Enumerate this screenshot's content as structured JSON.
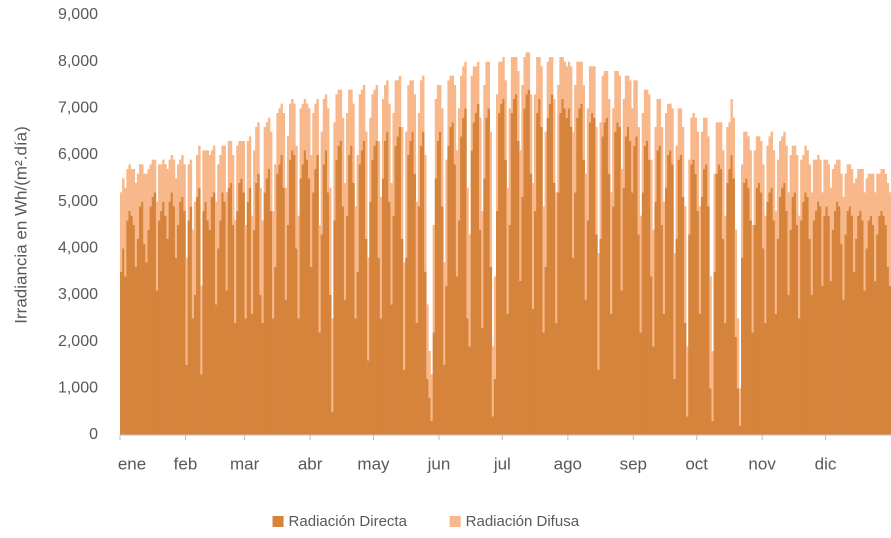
{
  "chart_data": {
    "type": "bar",
    "stacked": true,
    "ylabel": "Irradiancia en Wh/(m².día)",
    "legend": "bottom",
    "grid": false,
    "categories": [
      "ene",
      null,
      null,
      null,
      null,
      null,
      null,
      null,
      null,
      null,
      null,
      null,
      null,
      null,
      null,
      null,
      null,
      null,
      null,
      null,
      null,
      null,
      null,
      null,
      null,
      null,
      null,
      null,
      null,
      null,
      null,
      "feb",
      null,
      null,
      null,
      null,
      null,
      null,
      null,
      null,
      null,
      null,
      null,
      null,
      null,
      null,
      null,
      null,
      null,
      null,
      null,
      null,
      null,
      null,
      null,
      null,
      null,
      null,
      null,
      "mar",
      null,
      null,
      null,
      null,
      null,
      null,
      null,
      null,
      null,
      null,
      null,
      null,
      null,
      null,
      null,
      null,
      null,
      null,
      null,
      null,
      null,
      null,
      null,
      null,
      null,
      null,
      null,
      null,
      null,
      null,
      "abr",
      null,
      null,
      null,
      null,
      null,
      null,
      null,
      null,
      null,
      null,
      null,
      null,
      null,
      null,
      null,
      null,
      null,
      null,
      null,
      null,
      null,
      null,
      null,
      null,
      null,
      null,
      null,
      null,
      null,
      "may",
      null,
      null,
      null,
      null,
      null,
      null,
      null,
      null,
      null,
      null,
      null,
      null,
      null,
      null,
      null,
      null,
      null,
      null,
      null,
      null,
      null,
      null,
      null,
      null,
      null,
      null,
      null,
      null,
      null,
      null,
      "jun",
      null,
      null,
      null,
      null,
      null,
      null,
      null,
      null,
      null,
      null,
      null,
      null,
      null,
      null,
      null,
      null,
      null,
      null,
      null,
      null,
      null,
      null,
      null,
      null,
      null,
      null,
      null,
      null,
      null,
      "jul",
      null,
      null,
      null,
      null,
      null,
      null,
      null,
      null,
      null,
      null,
      null,
      null,
      null,
      null,
      null,
      null,
      null,
      null,
      null,
      null,
      null,
      null,
      null,
      null,
      null,
      null,
      null,
      null,
      null,
      null,
      "ago",
      null,
      null,
      null,
      null,
      null,
      null,
      null,
      null,
      null,
      null,
      null,
      null,
      null,
      null,
      null,
      null,
      null,
      null,
      null,
      null,
      null,
      null,
      null,
      null,
      null,
      null,
      null,
      null,
      null,
      null,
      "sep",
      null,
      null,
      null,
      null,
      null,
      null,
      null,
      null,
      null,
      null,
      null,
      null,
      null,
      null,
      null,
      null,
      null,
      null,
      null,
      null,
      null,
      null,
      null,
      null,
      null,
      null,
      null,
      null,
      null,
      "oct",
      null,
      null,
      null,
      null,
      null,
      null,
      null,
      null,
      null,
      null,
      null,
      null,
      null,
      null,
      null,
      null,
      null,
      null,
      null,
      null,
      null,
      null,
      null,
      null,
      null,
      null,
      null,
      null,
      null,
      null,
      "nov",
      null,
      null,
      null,
      null,
      null,
      null,
      null,
      null,
      null,
      null,
      null,
      null,
      null,
      null,
      null,
      null,
      null,
      null,
      null,
      null,
      null,
      null,
      null,
      null,
      null,
      null,
      null,
      null,
      null,
      "dic",
      null,
      null,
      null,
      null,
      null,
      null,
      null,
      null,
      null,
      null,
      null,
      null,
      null,
      null,
      null,
      null,
      null,
      null,
      null,
      null,
      null,
      null,
      null,
      null,
      null,
      null,
      null,
      null,
      null,
      null
    ],
    "series": [
      {
        "name": "Radiación Directa",
        "color": "#d6843c",
        "values": [
          3500,
          4000,
          3400,
          4600,
          4800,
          4700,
          4500,
          3600,
          4200,
          4900,
          5000,
          4100,
          3700,
          4400,
          4900,
          5100,
          5200,
          3100,
          4600,
          4800,
          5000,
          4700,
          4200,
          5000,
          5200,
          4900,
          3800,
          4500,
          5000,
          5100,
          4800,
          1500,
          4600,
          4900,
          2500,
          3000,
          5100,
          5300,
          1300,
          4800,
          5000,
          4600,
          4400,
          5100,
          5200,
          2800,
          4000,
          4600,
          5200,
          5000,
          3100,
          5300,
          5400,
          4500,
          2400,
          4800,
          5400,
          5500,
          5200,
          2500,
          5000,
          5300,
          2600,
          4400,
          5400,
          5600,
          3000,
          2400,
          5200,
          5500,
          5700,
          4800,
          2500,
          3600,
          5600,
          5800,
          6000,
          5300,
          2900,
          4500,
          5900,
          6100,
          6000,
          4000,
          2500,
          5500,
          5800,
          6100,
          5900,
          5500,
          3600,
          5200,
          5700,
          6000,
          2200,
          4300,
          5800,
          6100,
          5200,
          3000,
          500,
          4600,
          5900,
          6200,
          6300,
          4900,
          2900,
          4700,
          6000,
          6200,
          5400,
          2500,
          3500,
          5800,
          6100,
          6300,
          4200,
          1600,
          5000,
          5900,
          6200,
          6300,
          3800,
          2500,
          5500,
          6300,
          6500,
          5000,
          2800,
          4700,
          6200,
          6400,
          6600,
          4200,
          1400,
          3800,
          6000,
          6300,
          6500,
          5600,
          2400,
          4900,
          6200,
          6500,
          3500,
          1200,
          800,
          300,
          2200,
          5500,
          6300,
          6500,
          4900,
          1500,
          3200,
          6200,
          6600,
          6700,
          5800,
          3400,
          4600,
          6400,
          6800,
          7000,
          2500,
          1900,
          6100,
          6700,
          6900,
          7100,
          4400,
          2300,
          5500,
          6800,
          7000,
          3600,
          400,
          1200,
          4800,
          6900,
          7100,
          7200,
          5900,
          2600,
          4500,
          6900,
          7200,
          7300,
          6300,
          3300,
          5100,
          7000,
          7300,
          7400,
          5600,
          2700,
          4800,
          6900,
          7200,
          6600,
          2200,
          3600,
          6800,
          7100,
          7300,
          5400,
          2400,
          5200,
          6900,
          7200,
          7000,
          6800,
          7000,
          6600,
          3800,
          5200,
          6800,
          7000,
          7100,
          5900,
          2900,
          4600,
          6700,
          6900,
          6800,
          4300,
          1400,
          4200,
          6400,
          6700,
          6800,
          5600,
          2600,
          4900,
          6500,
          6700,
          6600,
          3100,
          5300,
          6400,
          6600,
          6300,
          5200,
          6200,
          6400,
          4300,
          2200,
          5200,
          6200,
          6300,
          5900,
          3400,
          1900,
          5000,
          6100,
          6200,
          4500,
          2600,
          5300,
          6000,
          6100,
          5800,
          1200,
          4200,
          5900,
          6000,
          5100,
          2400,
          400,
          4300,
          5800,
          5900,
          5600,
          4800,
          2600,
          5100,
          5700,
          5800,
          4900,
          1000,
          300,
          3500,
          5600,
          5800,
          5700,
          4200,
          2400,
          5400,
          5700,
          6000,
          5500,
          2100,
          1000,
          200,
          3800,
          5400,
          5500,
          5300,
          4600,
          2200,
          4500,
          5300,
          5400,
          5200,
          4000,
          2400,
          5000,
          5200,
          5300,
          4600,
          2600,
          4200,
          5100,
          5300,
          5400,
          4800,
          3000,
          4400,
          5100,
          5200,
          4500,
          2500,
          4600,
          5000,
          5200,
          5100,
          4200,
          3000,
          4600,
          4800,
          5000,
          4900,
          3200,
          4700,
          4900,
          4700,
          3300,
          4400,
          4800,
          5000,
          4900,
          4100,
          2900,
          4300,
          4800,
          4900,
          4700,
          3500,
          4200,
          4700,
          4800,
          4600,
          3100,
          4000,
          4600,
          4700,
          4500,
          3300,
          4300,
          4700,
          4800,
          4700,
          4500,
          3600,
          3200
        ]
      },
      {
        "name": "Radiación Difusa",
        "color": "#f8b88b",
        "values": [
          1700,
          1500,
          1900,
          1100,
          1000,
          1000,
          1200,
          1800,
          1400,
          900,
          800,
          1500,
          1900,
          1300,
          900,
          800,
          700,
          1900,
          1200,
          1000,
          900,
          1100,
          1500,
          900,
          800,
          1000,
          1700,
          1300,
          900,
          900,
          1000,
          2300,
          1200,
          1000,
          1900,
          2000,
          900,
          900,
          1900,
          1300,
          1100,
          1500,
          1600,
          1000,
          1000,
          2200,
          1800,
          1400,
          1000,
          1200,
          2100,
          1000,
          900,
          1500,
          2200,
          1400,
          900,
          800,
          1100,
          2000,
          1300,
          1100,
          2100,
          1700,
          1200,
          1100,
          2300,
          2200,
          1400,
          1200,
          1100,
          1700,
          2300,
          2200,
          1300,
          1200,
          1100,
          1600,
          2400,
          1900,
          1200,
          1100,
          1100,
          2200,
          2200,
          1500,
          1300,
          1100,
          1200,
          1500,
          2400,
          1700,
          1400,
          1200,
          2300,
          2200,
          1400,
          1200,
          1800,
          2300,
          2000,
          2100,
          1400,
          1200,
          1100,
          1900,
          2500,
          2200,
          1400,
          1200,
          1700,
          2400,
          2500,
          1500,
          1300,
          1200,
          2300,
          2200,
          1800,
          1400,
          1200,
          1200,
          2500,
          2600,
          1700,
          1200,
          1100,
          2100,
          2600,
          2200,
          1400,
          1200,
          1100,
          2400,
          2300,
          2700,
          1500,
          1300,
          1100,
          1700,
          2600,
          2000,
          1400,
          1200,
          2500,
          1600,
          1000,
          1000,
          2300,
          1700,
          1200,
          1000,
          2100,
          2200,
          2700,
          1400,
          1100,
          1000,
          1700,
          2700,
          2400,
          1300,
          1100,
          1000,
          2800,
          2400,
          1600,
          1200,
          1000,
          900,
          2400,
          2500,
          2000,
          1200,
          1000,
          2900,
          1500,
          2200,
          2500,
          1100,
          900,
          900,
          1700,
          2700,
          2500,
          1200,
          900,
          800,
          1500,
          2800,
          2400,
          1100,
          900,
          800,
          1700,
          2700,
          2500,
          1200,
          900,
          1300,
          2700,
          2900,
          1200,
          1000,
          800,
          1800,
          2800,
          2300,
          1200,
          900,
          1000,
          1100,
          1000,
          1300,
          2700,
          2300,
          1200,
          1000,
          900,
          1600,
          2700,
          2400,
          1200,
          1000,
          1100,
          2300,
          2500,
          2500,
          1300,
          1100,
          1000,
          1600,
          2600,
          2100,
          1300,
          1100,
          1100,
          2600,
          1900,
          1300,
          1100,
          1300,
          1800,
          1400,
          1200,
          2300,
          2500,
          1700,
          1200,
          1100,
          1400,
          2500,
          2500,
          1600,
          1100,
          1000,
          2100,
          2400,
          1600,
          1100,
          1000,
          1200,
          2700,
          2000,
          1100,
          1000,
          1500,
          2500,
          1500,
          1600,
          1000,
          1000,
          1200,
          1700,
          2300,
          1400,
          1100,
          1000,
          1500,
          2400,
          1500,
          2100,
          1100,
          900,
          1000,
          1900,
          2300,
          1200,
          1000,
          1200,
          1300,
          2300,
          1500,
          800,
          2000,
          1100,
          1000,
          1100,
          1500,
          2300,
          1600,
          1100,
          1000,
          1100,
          1800,
          2300,
          1200,
          1200,
          1200,
          1500,
          2200,
          1700,
          1200,
          1100,
          1100,
          1400,
          2200,
          1600,
          1100,
          1000,
          1500,
          2200,
          1300,
          1000,
          1000,
          1000,
          1600,
          2200,
          1300,
          1100,
          1000,
          1000,
          2000,
          1200,
          1000,
          1100,
          2000,
          1300,
          1000,
          900,
          1000,
          1500,
          2200,
          1300,
          1000,
          900,
          1000,
          1900,
          1300,
          1000,
          900,
          1100,
          2100,
          1500,
          1000,
          900,
          1100,
          1900,
          1300,
          900,
          900,
          1000,
          1100,
          1800,
          2000
        ]
      }
    ],
    "ylim": [
      0,
      9000
    ],
    "yticks": [
      0,
      {
        "value": 1000,
        "label": "1,000"
      },
      {
        "value": 2000,
        "label": "2,000"
      },
      {
        "value": 3000,
        "label": "3,000"
      },
      {
        "value": 4000,
        "label": "4,000"
      },
      {
        "value": 5000,
        "label": "5,000"
      },
      {
        "value": 6000,
        "label": "6,000"
      },
      {
        "value": 7000,
        "label": "7,000"
      },
      {
        "value": 8000,
        "label": "8,000"
      },
      {
        "value": 9000,
        "label": "9,000"
      }
    ]
  }
}
